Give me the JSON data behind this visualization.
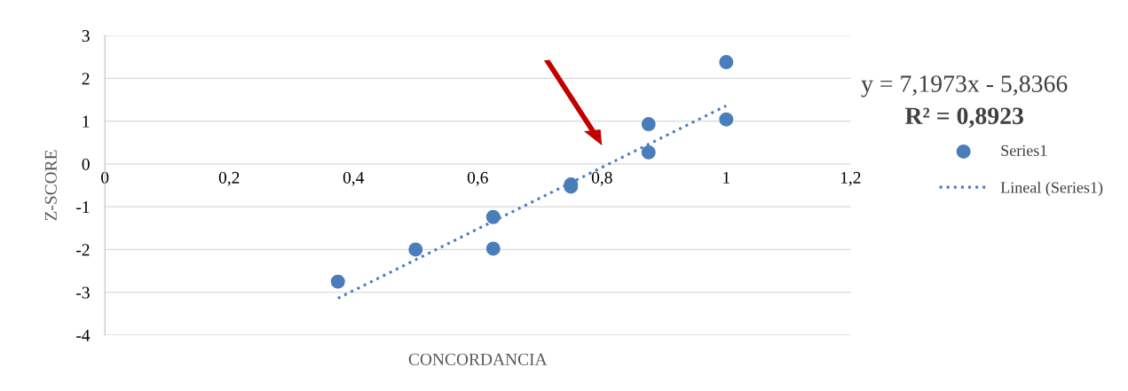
{
  "chart_data": {
    "type": "scatter",
    "xlabel": "CONCORDANCIA",
    "ylabel": "Z-SCORE",
    "series": [
      {
        "name": "Series1",
        "color": "#4a7ebb",
        "marker": "circle",
        "x": [
          0.375,
          0.5,
          0.625,
          0.625,
          0.75,
          0.75,
          0.875,
          0.875,
          1.0,
          1.0
        ],
        "values": [
          -2.75,
          -2.0,
          -1.24,
          -1.98,
          -0.48,
          -0.53,
          0.93,
          0.27,
          1.04,
          2.38
        ]
      },
      {
        "name": "Lineal (Series1)",
        "type": "line",
        "color": "#4a7ebb",
        "line_style": "dotted",
        "marker": "none",
        "x": [
          0.375,
          1.0
        ],
        "values": [
          -3.14,
          1.36
        ]
      }
    ],
    "xlim": [
      0,
      1.2
    ],
    "ylim": [
      -4,
      3
    ],
    "xticks": [
      0,
      {
        "value": 0.2,
        "label": "0,2"
      },
      {
        "value": 0.4,
        "label": "0,4"
      },
      {
        "value": 0.6,
        "label": "0,6"
      },
      {
        "value": 0.8,
        "label": "0,8"
      },
      1,
      {
        "value": 1.2,
        "label": "1,2"
      }
    ],
    "yticks": [
      -4,
      -3,
      -2,
      -1,
      0,
      1,
      2,
      3
    ],
    "grid": "y",
    "legend": "right",
    "annotations": [
      "y = 7,1973x - 5,8366",
      "R² = 0,8923"
    ]
  }
}
